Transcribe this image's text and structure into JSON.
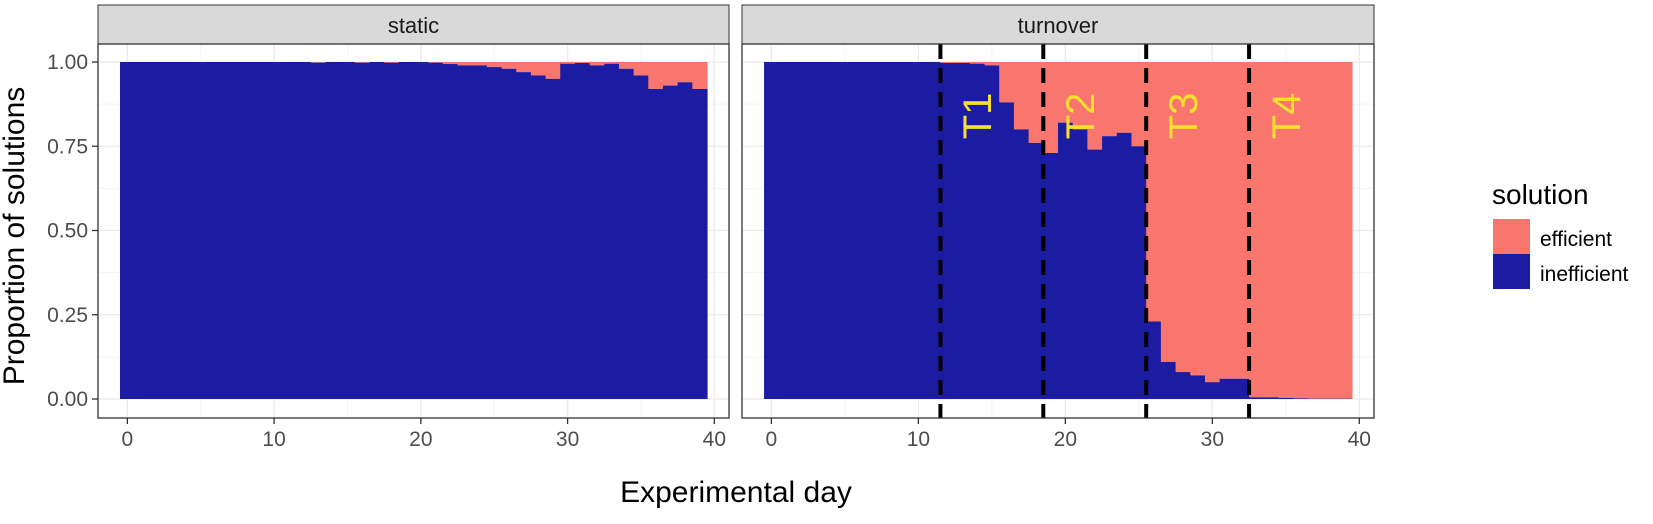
{
  "colors": {
    "efficient": "#F8766D",
    "inefficient": "#1C1CA3",
    "annotation": "#F5E02E",
    "strip": "#D9D9D9",
    "grid_major": "#EBEBEB",
    "grid_minor": "#F5F5F5"
  },
  "chart_data": {
    "type": "bar",
    "subtype": "stacked-proportion-faceted",
    "xlabel": "Experimental day",
    "ylabel": "Proportion of solutions",
    "xlim": [
      -2,
      41
    ],
    "ylim": [
      0,
      1
    ],
    "x_ticks": [
      0,
      10,
      20,
      30,
      40
    ],
    "y_ticks": [
      0,
      0.25,
      0.5,
      0.75,
      1.0
    ],
    "y_tick_labels": [
      "0.00",
      "0.25",
      "0.50",
      "0.75",
      "1.00"
    ],
    "grid": true,
    "legend": {
      "title": "solution",
      "position": "right",
      "entries": [
        "efficient",
        "inefficient"
      ]
    },
    "x": [
      0,
      1,
      2,
      3,
      4,
      5,
      6,
      7,
      8,
      9,
      10,
      11,
      12,
      13,
      14,
      15,
      16,
      17,
      18,
      19,
      20,
      21,
      22,
      23,
      24,
      25,
      26,
      27,
      28,
      29,
      30,
      31,
      32,
      33,
      34,
      35,
      36,
      37,
      38,
      39
    ],
    "panels": [
      {
        "title": "static",
        "series": [
          {
            "name": "inefficient",
            "values": [
              1,
              1,
              1,
              1,
              1,
              1,
              1,
              1,
              1,
              1,
              1,
              1,
              1,
              0.998,
              1,
              1,
              0.998,
              1,
              0.998,
              1,
              1,
              0.998,
              0.994,
              0.99,
              0.99,
              0.985,
              0.98,
              0.97,
              0.96,
              0.95,
              0.995,
              0.997,
              0.99,
              0.995,
              0.98,
              0.96,
              0.92,
              0.93,
              0.94,
              0.92
            ]
          },
          {
            "name": "efficient",
            "values": [
              0,
              0,
              0,
              0,
              0,
              0,
              0,
              0,
              0,
              0,
              0,
              0,
              0,
              0.002,
              0,
              0,
              0.002,
              0,
              0.002,
              0,
              0,
              0.002,
              0.006,
              0.01,
              0.01,
              0.015,
              0.02,
              0.03,
              0.04,
              0.05,
              0.005,
              0.003,
              0.01,
              0.005,
              0.02,
              0.04,
              0.08,
              0.07,
              0.06,
              0.08
            ]
          }
        ]
      },
      {
        "title": "turnover",
        "series": [
          {
            "name": "inefficient",
            "values": [
              1,
              1,
              1,
              1,
              1,
              1,
              1,
              1,
              1,
              1,
              1,
              1,
              0.997,
              0.997,
              0.995,
              0.99,
              0.88,
              0.8,
              0.76,
              0.73,
              0.82,
              0.8,
              0.74,
              0.78,
              0.79,
              0.75,
              0.23,
              0.11,
              0.08,
              0.07,
              0.05,
              0.06,
              0.06,
              0.005,
              0.005,
              0.003,
              0.002,
              0.001,
              0.001,
              0.001
            ]
          },
          {
            "name": "efficient",
            "values": [
              0,
              0,
              0,
              0,
              0,
              0,
              0,
              0,
              0,
              0,
              0,
              0,
              0.003,
              0.003,
              0.005,
              0.01,
              0.12,
              0.2,
              0.24,
              0.27,
              0.18,
              0.2,
              0.26,
              0.22,
              0.21,
              0.25,
              0.77,
              0.89,
              0.92,
              0.93,
              0.95,
              0.94,
              0.94,
              0.995,
              0.995,
              0.997,
              0.998,
              0.999,
              0.999,
              0.999
            ]
          }
        ],
        "vlines": [
          11.5,
          18.5,
          25.5,
          32.5
        ],
        "annotations": [
          {
            "text": "T1",
            "x": 14
          },
          {
            "text": "T2",
            "x": 21
          },
          {
            "text": "T3",
            "x": 28
          },
          {
            "text": "T4",
            "x": 35
          }
        ],
        "annotation_y": 0.84
      }
    ]
  }
}
